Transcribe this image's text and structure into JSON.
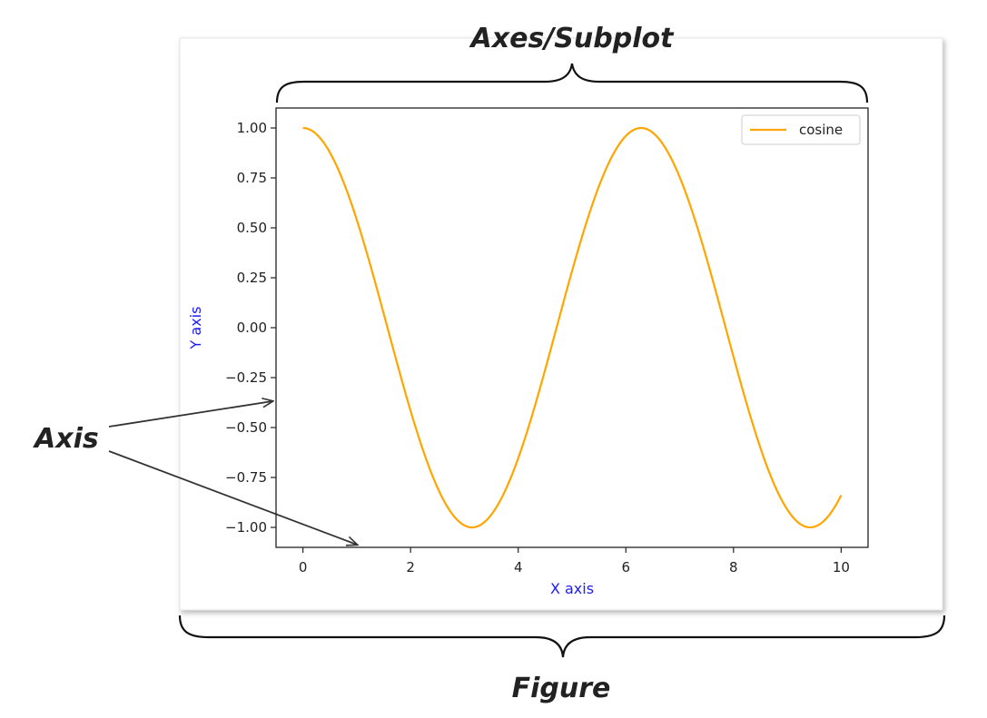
{
  "annotations": {
    "axes_label": "Axes/Subplot",
    "axis_label": "Axis",
    "figure_label": "Figure"
  },
  "colors": {
    "series": "#FFA500",
    "axis_label": "#1a1aff"
  },
  "chart_data": {
    "type": "line",
    "title": "",
    "xlabel": "X axis",
    "ylabel": "Y axis",
    "xlim": [
      -0.5,
      10.5
    ],
    "ylim": [
      -1.1,
      1.1
    ],
    "xticks": [
      0,
      2,
      4,
      6,
      8,
      10
    ],
    "xtick_labels": [
      "0",
      "2",
      "4",
      "6",
      "8",
      "10"
    ],
    "yticks": [
      1.0,
      0.75,
      0.5,
      0.25,
      0.0,
      -0.25,
      -0.5,
      -0.75,
      -1.0
    ],
    "ytick_labels": [
      "1.00",
      "0.75",
      "0.50",
      "0.25",
      "0.00",
      "−0.25",
      "−0.50",
      "−0.75",
      "−1.00"
    ],
    "grid": false,
    "legend_position": "top-right",
    "series": [
      {
        "name": "cosine",
        "color": "#FFA500",
        "function": "cos(x)",
        "x_range": [
          0,
          10
        ]
      }
    ]
  }
}
